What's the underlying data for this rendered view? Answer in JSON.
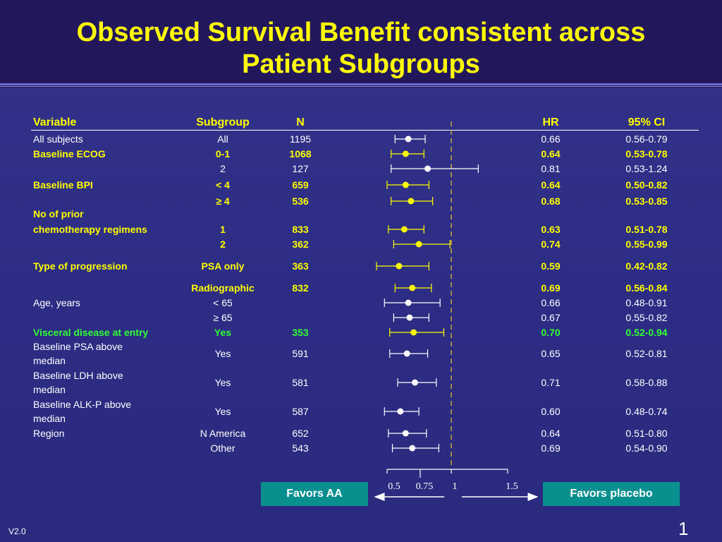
{
  "slide": {
    "title_line1": "Observed Survival Benefit consistent across",
    "title_line2": "Patient Subgroups",
    "version": "V2.0",
    "page_number": "1"
  },
  "headers": {
    "variable": "Variable",
    "subgroup": "Subgroup",
    "n": "N",
    "hr": "HR",
    "ci": "95% CI"
  },
  "rows": [
    {
      "variable": "All subjects",
      "subgroup": "All",
      "n": "1195",
      "hr": "0.66",
      "ci": "0.56-0.79",
      "style": "w"
    },
    {
      "variable": "Baseline ECOG",
      "subgroup": "0-1",
      "n": "1068",
      "hr": "0.64",
      "ci": "0.53-0.78",
      "style": "y"
    },
    {
      "variable": "",
      "subgroup": "2",
      "n": "127",
      "hr": "0.81",
      "ci": "0.53-1.24",
      "style": "w"
    },
    {
      "variable": "Baseline BPI",
      "subgroup": "< 4",
      "n": "659",
      "hr": "0.64",
      "ci": "0.50-0.82",
      "style": "y"
    },
    {
      "variable": "",
      "subgroup": "≥ 4",
      "n": "536",
      "hr": "0.68",
      "ci": "0.53-0.85",
      "style": "y"
    },
    {
      "variable": "No of prior",
      "variable2": "chemotherapy regimens",
      "subgroup": "1",
      "n": "833",
      "hr": "0.63",
      "ci": "0.51-0.78",
      "style": "y"
    },
    {
      "variable": "",
      "subgroup": "2",
      "n": "362",
      "hr": "0.74",
      "ci": "0.55-0.99",
      "style": "y"
    },
    {
      "variable": "Type of progression",
      "subgroup": "PSA only",
      "n": "363",
      "hr": "0.59",
      "ci": "0.42-0.82",
      "style": "y"
    },
    {
      "variable": "",
      "subgroup": "Radiographic",
      "n": "832",
      "hr": "0.69",
      "ci": "0.56-0.84",
      "style": "y"
    },
    {
      "variable": "Age, years",
      "subgroup": "< 65",
      "n": "",
      "hr": "0.66",
      "ci": "0.48-0.91",
      "style": "w"
    },
    {
      "variable": "",
      "subgroup": "≥ 65",
      "n": "",
      "hr": "0.67",
      "ci": "0.55-0.82",
      "style": "w"
    },
    {
      "variable": "Visceral disease at entry",
      "subgroup": "Yes",
      "n": "353",
      "hr": "0.70",
      "ci": "0.52-0.94",
      "style": "g"
    },
    {
      "variable": "Baseline PSA above",
      "variable2": "median",
      "subgroup": "Yes",
      "n": "591",
      "hr": "0.65",
      "ci": "0.52-0.81",
      "style": "w"
    },
    {
      "variable": "Baseline LDH above",
      "variable2": "median",
      "subgroup": "Yes",
      "n": "581",
      "hr": "0.71",
      "ci": "0.58-0.88",
      "style": "w"
    },
    {
      "variable": "Baseline ALK-P above",
      "variable2": "median",
      "subgroup": "Yes",
      "n": "587",
      "hr": "0.60",
      "ci": "0.48-0.74",
      "style": "w"
    },
    {
      "variable": "Region",
      "subgroup": "N America",
      "n": "652",
      "hr": "0.64",
      "ci": "0.51-0.80",
      "style": "w"
    },
    {
      "variable": "",
      "subgroup": "Other",
      "n": "543",
      "hr": "0.69",
      "ci": "0.54-0.90",
      "style": "w"
    }
  ],
  "chart_data": {
    "type": "forest",
    "x_ticks": [
      0.5,
      0.75,
      1,
      1.5
    ],
    "x_tick_labels": [
      "0.5",
      "0.75",
      "1",
      "1.5"
    ],
    "reference_line": 1,
    "xlim": [
      0.5,
      1.5
    ],
    "favors_left": "Favors AA",
    "favors_right": "Favors placebo",
    "points": [
      {
        "hr": 0.66,
        "lo": 0.56,
        "hi": 0.79,
        "color": "w"
      },
      {
        "hr": 0.64,
        "lo": 0.53,
        "hi": 0.78,
        "color": "y"
      },
      {
        "hr": 0.81,
        "lo": 0.53,
        "hi": 1.24,
        "color": "w"
      },
      {
        "hr": 0.64,
        "lo": 0.5,
        "hi": 0.82,
        "color": "y"
      },
      {
        "hr": 0.68,
        "lo": 0.53,
        "hi": 0.85,
        "color": "y"
      },
      {
        "hr": 0.63,
        "lo": 0.51,
        "hi": 0.78,
        "color": "y"
      },
      {
        "hr": 0.74,
        "lo": 0.55,
        "hi": 0.99,
        "color": "y"
      },
      {
        "hr": 0.59,
        "lo": 0.42,
        "hi": 0.82,
        "color": "y"
      },
      {
        "hr": 0.69,
        "lo": 0.56,
        "hi": 0.84,
        "color": "y"
      },
      {
        "hr": 0.66,
        "lo": 0.48,
        "hi": 0.91,
        "color": "w"
      },
      {
        "hr": 0.67,
        "lo": 0.55,
        "hi": 0.82,
        "color": "w"
      },
      {
        "hr": 0.7,
        "lo": 0.52,
        "hi": 0.94,
        "color": "y"
      },
      {
        "hr": 0.65,
        "lo": 0.52,
        "hi": 0.81,
        "color": "w"
      },
      {
        "hr": 0.71,
        "lo": 0.58,
        "hi": 0.88,
        "color": "w"
      },
      {
        "hr": 0.6,
        "lo": 0.48,
        "hi": 0.74,
        "color": "w"
      },
      {
        "hr": 0.64,
        "lo": 0.51,
        "hi": 0.8,
        "color": "w"
      },
      {
        "hr": 0.69,
        "lo": 0.54,
        "hi": 0.9,
        "color": "w"
      }
    ]
  },
  "colors": {
    "yellow": "#ffff00",
    "green": "#33ff33",
    "white": "#ffffff",
    "teal_box": "#0a8f8f",
    "dashed_line": "#c8a838"
  }
}
